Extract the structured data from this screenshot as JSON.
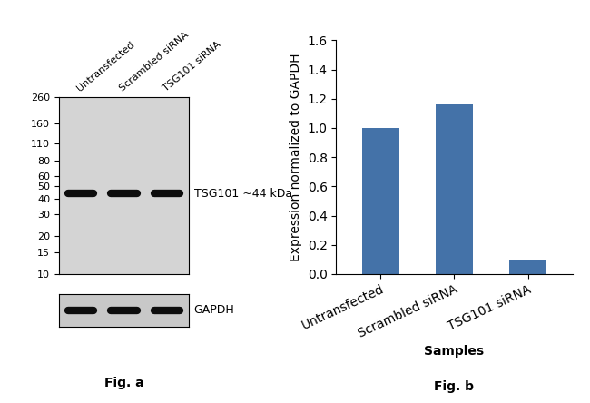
{
  "chart_data": [
    {
      "type": "blot",
      "categories": [
        "Untransfected",
        "Scrambled siRNA",
        "TSG101 siRNA"
      ],
      "log": "y",
      "ylim": [
        10,
        260
      ],
      "yticks": [
        260,
        160,
        110,
        80,
        60,
        50,
        40,
        30,
        20,
        15,
        10
      ],
      "series": [
        {
          "name": "TSG101 ~44 kDa",
          "values": [
            44,
            44,
            44
          ]
        },
        {
          "name": "GAPDH",
          "type": "loading_control"
        }
      ],
      "annotations": [
        "Fig. a"
      ]
    },
    {
      "type": "bar",
      "categories": [
        "Untransfected",
        "Scrambled siRNA",
        "TSG101 siRNA"
      ],
      "values": [
        1.0,
        1.16,
        0.09
      ],
      "color": "#4472a8",
      "ylim": [
        0.0,
        1.6
      ],
      "yticks": [
        0.0,
        0.2,
        0.4,
        0.6,
        0.8,
        1.0,
        1.2,
        1.4,
        1.6
      ],
      "y_label": "Expression normalized to GAPDH",
      "x_label": "Samples",
      "annotations": [
        "Fig. b"
      ]
    }
  ]
}
